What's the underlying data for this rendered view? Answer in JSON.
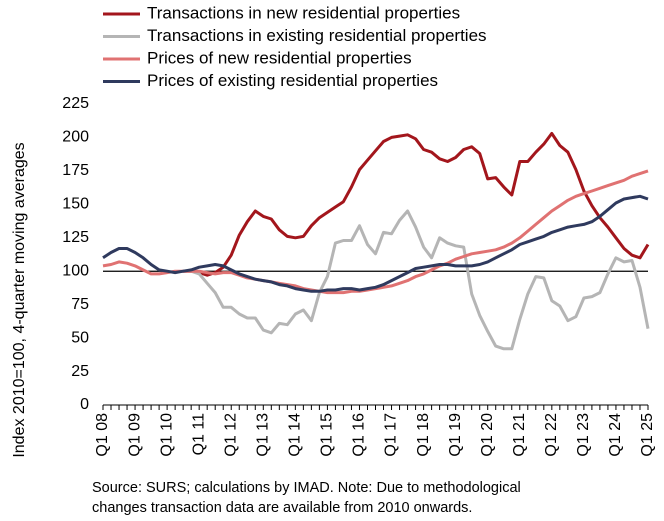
{
  "chart_data": {
    "type": "line",
    "y_label": "Index 2010=100, 4-quarter moving averages",
    "note": [
      "Source: SURS; calculations by IMAD. Note: Due to methodological",
      "changes transaction data are available from 2010 onwards."
    ],
    "categories": [
      "Q1 08",
      null,
      null,
      null,
      "Q1 09",
      null,
      null,
      null,
      "Q1 10",
      null,
      null,
      null,
      "Q1 11",
      null,
      null,
      null,
      "Q1 12",
      null,
      null,
      null,
      "Q1 13",
      null,
      null,
      null,
      "Q1 14",
      null,
      null,
      null,
      "Q1 15",
      null,
      null,
      null,
      "Q1 16",
      null,
      null,
      null,
      "Q1 17",
      null,
      null,
      null,
      "Q1 18",
      null,
      null,
      null,
      "Q1 19",
      null,
      null,
      null,
      "Q1 20",
      null,
      null,
      null,
      "Q1 21",
      null,
      null,
      null,
      "Q1 22",
      null,
      null,
      null,
      "Q1 23",
      null,
      null,
      null,
      "Q1 24",
      null,
      null,
      null,
      "Q1 25"
    ],
    "series": [
      {
        "name": "Transactions in new residential properties",
        "color": "#a3161c",
        "values": [
          null,
          null,
          null,
          null,
          null,
          null,
          null,
          null,
          null,
          null,
          100,
          100,
          99,
          97,
          99,
          103,
          112,
          127,
          137,
          145,
          141,
          139,
          131,
          126,
          125,
          126,
          134,
          140,
          144,
          148,
          152,
          163,
          176,
          183,
          190,
          197,
          200,
          201,
          202,
          199,
          191,
          189,
          184,
          182,
          185,
          191,
          193,
          188,
          169,
          170,
          163,
          157,
          182,
          182,
          189,
          195,
          203,
          194,
          189,
          176,
          160,
          149,
          140,
          133,
          125,
          117,
          112,
          110,
          120
        ]
      },
      {
        "name": "Transactions in existing residential properties",
        "color": "#b5b5b5",
        "values": [
          null,
          null,
          null,
          null,
          null,
          null,
          null,
          null,
          null,
          null,
          100,
          100,
          98,
          91,
          84,
          73,
          73,
          68,
          65,
          65,
          56,
          54,
          61,
          60,
          68,
          71,
          63,
          84,
          96,
          121,
          123,
          123,
          134,
          120,
          113,
          129,
          128,
          138,
          145,
          133,
          118,
          110,
          125,
          121,
          119,
          118,
          83,
          67,
          55,
          44,
          42,
          42,
          64,
          83,
          96,
          95,
          78,
          74,
          63,
          66,
          80,
          81,
          84,
          98,
          110,
          107,
          108,
          88,
          57
        ]
      },
      {
        "name": "Prices of new residential properties",
        "color": "#e07272",
        "values": [
          104,
          105,
          107,
          106,
          104,
          101,
          98,
          98,
          99,
          100,
          100,
          100,
          100,
          99,
          98,
          99,
          99,
          97,
          95,
          94,
          93,
          92,
          91,
          90,
          89,
          87,
          86,
          85,
          84,
          84,
          84,
          85,
          85,
          86,
          87,
          88,
          89,
          91,
          93,
          96,
          98,
          101,
          104,
          106,
          109,
          111,
          113,
          114,
          115,
          116,
          118,
          121,
          125,
          130,
          135,
          140,
          145,
          149,
          153,
          156,
          158,
          160,
          162,
          164,
          166,
          168,
          171,
          173,
          175
        ]
      },
      {
        "name": "Prices of existing residential properties",
        "color": "#2f3a5e",
        "values": [
          110,
          114,
          117,
          117,
          114,
          110,
          105,
          101,
          100,
          99,
          100,
          101,
          103,
          104,
          105,
          104,
          101,
          98,
          96,
          94,
          93,
          92,
          90,
          89,
          87,
          86,
          85,
          85,
          86,
          86,
          87,
          87,
          86,
          87,
          88,
          90,
          93,
          96,
          99,
          102,
          103,
          104,
          105,
          105,
          104,
          104,
          104,
          105,
          107,
          110,
          113,
          116,
          120,
          122,
          124,
          126,
          129,
          131,
          133,
          134,
          135,
          137,
          141,
          146,
          151,
          154,
          155,
          156,
          154
        ]
      }
    ],
    "hline": 100,
    "ylim": [
      0,
      225
    ],
    "yticks": [
      0,
      25,
      50,
      75,
      100,
      125,
      150,
      175,
      200,
      225
    ],
    "grid": false
  }
}
